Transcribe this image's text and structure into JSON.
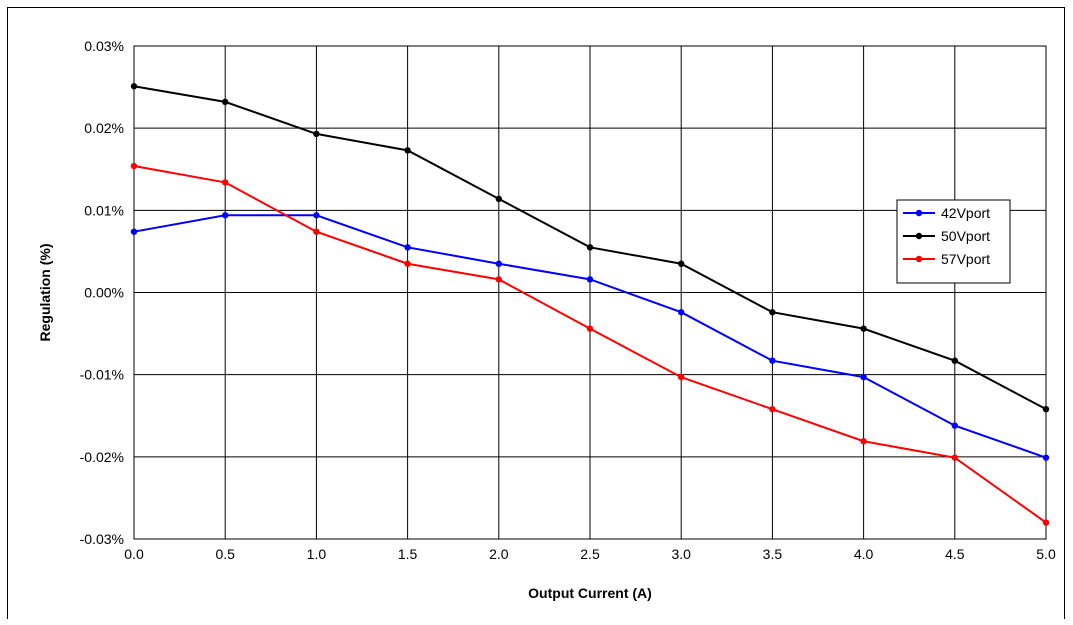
{
  "chart_data": {
    "type": "line",
    "xlabel": "Output Current (A)",
    "ylabel": "Regulation (%)",
    "xlim": [
      0,
      5
    ],
    "ylim": [
      -0.03,
      0.03
    ],
    "x_tick_labels": [
      "0.0",
      "0.5",
      "1.0",
      "1.5",
      "2.0",
      "2.5",
      "3.0",
      "3.5",
      "4.0",
      "4.5",
      "5.0"
    ],
    "y_tick_labels": [
      "0.03%",
      "0.02%",
      "0.01%",
      "0.00%",
      "-0.01%",
      "-0.02%",
      "-0.03%"
    ],
    "grid": true,
    "legend_position": "right",
    "x": [
      0.0,
      0.5,
      1.0,
      1.5,
      2.0,
      2.5,
      3.0,
      3.5,
      4.0,
      4.5,
      5.0
    ],
    "series": [
      {
        "name": "42Vport",
        "color": "#0000ff",
        "values": [
          0.0074,
          0.0094,
          0.0094,
          0.0055,
          0.0035,
          0.0016,
          -0.0024,
          -0.0083,
          -0.0103,
          -0.0162,
          -0.0201
        ]
      },
      {
        "name": "50Vport",
        "color": "#000000",
        "values": [
          0.0251,
          0.0232,
          0.0193,
          0.0173,
          0.0114,
          0.0055,
          0.0035,
          -0.0024,
          -0.0044,
          -0.0083,
          -0.0142
        ]
      },
      {
        "name": "57Vport",
        "color": "#ff0000",
        "values": [
          0.0154,
          0.0134,
          0.0074,
          0.0035,
          0.0016,
          -0.0044,
          -0.0103,
          -0.0142,
          -0.0181,
          -0.0201,
          -0.028
        ]
      }
    ]
  }
}
